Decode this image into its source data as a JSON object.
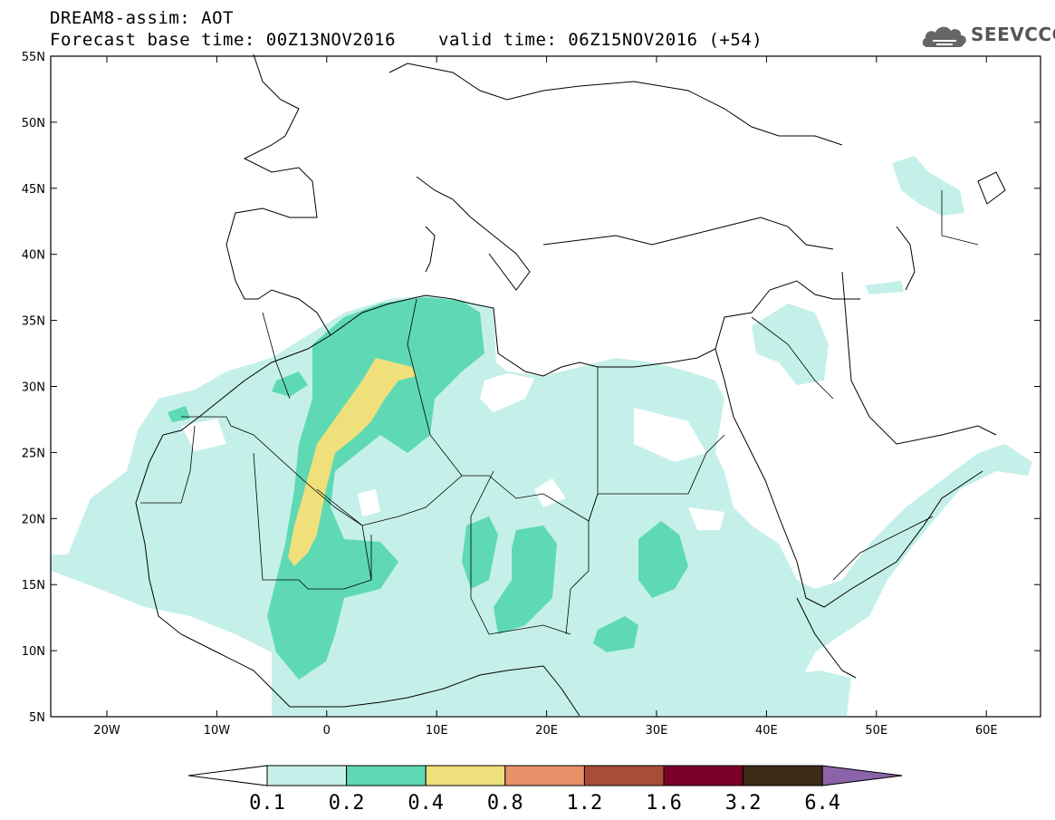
{
  "header": {
    "title": "DREAM8-assim: AOT",
    "base_time": "Forecast base time: 00Z13NOV2016",
    "valid_time": "valid time: 06Z15NOV2016 (+54)"
  },
  "logo": {
    "text": "SEEVCCC",
    "icon": "cloud-icon"
  },
  "map": {
    "lat_labels": [
      "55N",
      "50N",
      "45N",
      "40N",
      "35N",
      "30N",
      "25N",
      "20N",
      "15N",
      "10N",
      "5N"
    ],
    "lon_labels": [
      "20W",
      "10W",
      "0",
      "10E",
      "20E",
      "30E",
      "40E",
      "50E",
      "60E"
    ]
  },
  "colorbar": {
    "labels": [
      "0.1",
      "0.2",
      "0.4",
      "0.8",
      "1.2",
      "1.6",
      "3.2",
      "6.4"
    ],
    "colors": [
      "#c5f0ea",
      "#5ed9b4",
      "#f0e07c",
      "#e8906a",
      "#a94c3a",
      "#7b0027",
      "#3d2a17"
    ],
    "low_color": "#ffffff",
    "high_color": "#8a63a8"
  },
  "legend_colors": {
    "aot_0_1": "#c5f0ea",
    "aot_0_2": "#5ed9b4",
    "aot_0_4": "#f0e07c"
  }
}
